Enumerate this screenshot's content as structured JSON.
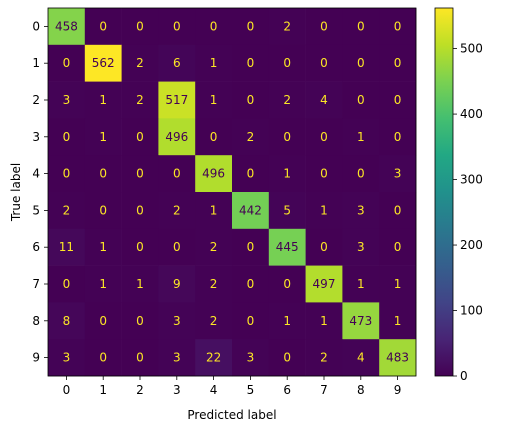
{
  "chart_data": {
    "type": "heatmap",
    "title": "",
    "xlabel": "Predicted label",
    "ylabel": "True label",
    "x_categories": [
      "0",
      "1",
      "2",
      "3",
      "4",
      "5",
      "6",
      "7",
      "8",
      "9"
    ],
    "y_categories": [
      "0",
      "1",
      "2",
      "3",
      "4",
      "5",
      "6",
      "7",
      "8",
      "9"
    ],
    "values": [
      [
        458,
        0,
        0,
        0,
        0,
        0,
        2,
        0,
        0,
        0
      ],
      [
        0,
        562,
        2,
        6,
        1,
        0,
        0,
        0,
        0,
        0
      ],
      [
        3,
        1,
        2,
        517,
        1,
        0,
        2,
        4,
        0,
        0
      ],
      [
        0,
        1,
        0,
        496,
        0,
        2,
        0,
        0,
        1,
        0
      ],
      [
        0,
        0,
        0,
        0,
        496,
        0,
        1,
        0,
        0,
        3
      ],
      [
        2,
        0,
        0,
        2,
        1,
        442,
        5,
        1,
        3,
        0
      ],
      [
        11,
        1,
        0,
        0,
        2,
        0,
        445,
        0,
        3,
        0
      ],
      [
        0,
        1,
        1,
        9,
        2,
        0,
        0,
        497,
        1,
        1
      ],
      [
        8,
        0,
        0,
        3,
        2,
        0,
        1,
        1,
        473,
        1
      ],
      [
        3,
        0,
        0,
        3,
        22,
        3,
        0,
        2,
        4,
        483
      ]
    ],
    "vmin": 0,
    "vmax": 562,
    "colormap": "viridis",
    "colorbar_ticks": [
      "0",
      "100",
      "200",
      "300",
      "400",
      "500"
    ],
    "colorbar_tick_values": [
      0,
      100,
      200,
      300,
      400,
      500
    ],
    "text_color_low": "#fde725",
    "text_color_high": "#440154"
  }
}
